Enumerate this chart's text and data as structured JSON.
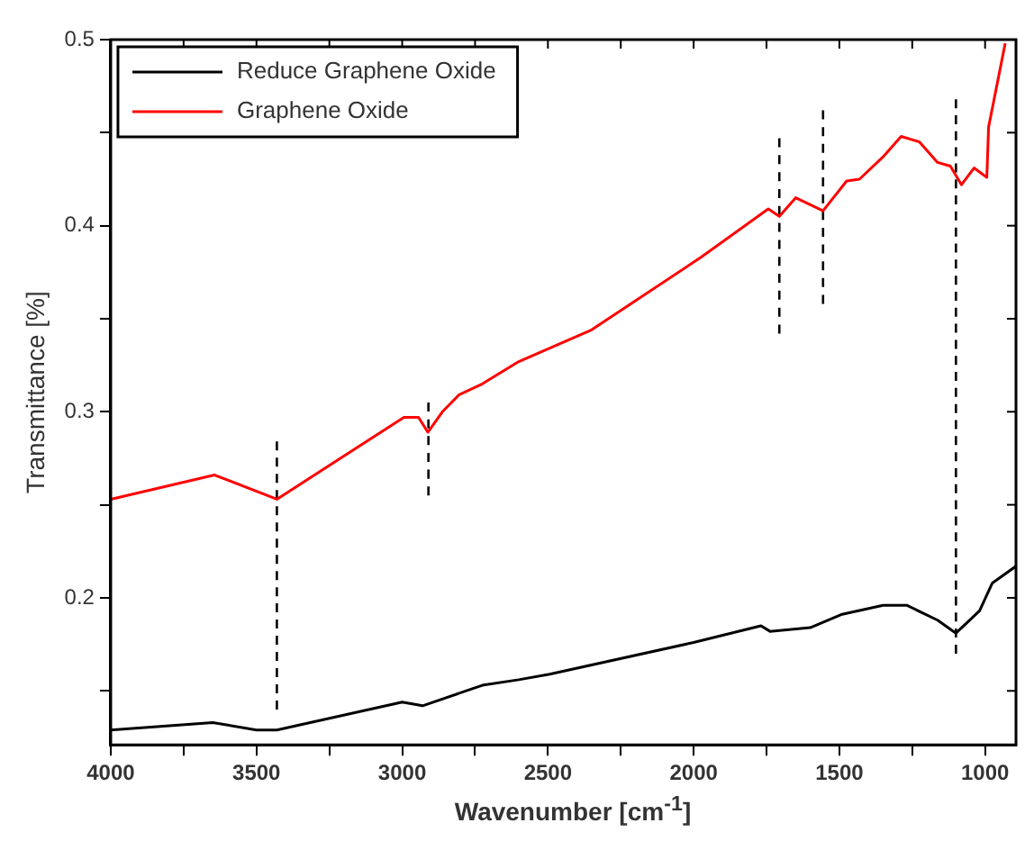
{
  "chart_data": {
    "type": "line",
    "xlabel": "Wavenumber [cm$^{-1}$]",
    "ylabel": "Transmittance [%]",
    "xlim": [
      4000,
      894
    ],
    "ylim": [
      0.121,
      0.5
    ],
    "xticks": [
      4000,
      {
        "value": 3750,
        "label": null
      },
      3500,
      {
        "value": 3250,
        "label": null
      },
      3000,
      {
        "value": 2750,
        "label": null
      },
      2500,
      {
        "value": 2250,
        "label": null
      },
      2000,
      {
        "value": 1750,
        "label": null
      },
      1500,
      {
        "value": 1250,
        "label": null
      },
      1000
    ],
    "yticks": [
      {
        "value": 0.15,
        "label": null
      },
      0.2,
      {
        "value": 0.25,
        "label": null
      },
      0.3,
      {
        "value": 0.35,
        "label": null
      },
      0.4,
      {
        "value": 0.45,
        "label": null
      },
      0.5
    ],
    "grid": false,
    "legend": "top left",
    "line_style": "solid",
    "series": [
      {
        "name": "Reduce Graphene Oxide",
        "color": "#000000",
        "x": [
          4000,
          3650,
          3500,
          3430,
          3000,
          2930,
          2725,
          2600,
          2494,
          2000,
          1769,
          1738,
          1600,
          1494,
          1350,
          1269,
          1163,
          1100,
          1019,
          975,
          894
        ],
        "values": [
          0.129,
          0.133,
          0.129,
          0.129,
          0.144,
          0.142,
          0.153,
          0.156,
          0.159,
          0.176,
          0.185,
          0.182,
          0.184,
          0.191,
          0.196,
          0.196,
          0.188,
          0.181,
          0.193,
          0.208,
          0.217
        ]
      },
      {
        "name": "Graphene Oxide",
        "color": "#ff0000",
        "x": [
          4000,
          3644,
          3430,
          2994,
          2944,
          2912,
          2862,
          2806,
          2725,
          2600,
          2350,
          1975,
          1744,
          1706,
          1650,
          1556,
          1475,
          1431,
          1350,
          1288,
          1225,
          1163,
          1119,
          1081,
          1038,
          994,
          988,
          931
        ],
        "values": [
          0.253,
          0.266,
          0.253,
          0.297,
          0.297,
          0.289,
          0.3,
          0.309,
          0.315,
          0.327,
          0.344,
          0.383,
          0.409,
          0.405,
          0.415,
          0.408,
          0.424,
          0.425,
          0.437,
          0.448,
          0.445,
          0.434,
          0.432,
          0.422,
          0.431,
          0.426,
          0.453,
          0.498
        ]
      },
      {
        "color": "#000000",
        "line_style": "dashed",
        "x": [
          3430,
          3430
        ],
        "values": [
          0.14,
          0.284
        ]
      },
      {
        "color": "#000000",
        "line_style": "dashed",
        "x": [
          2910,
          2910
        ],
        "values": [
          0.255,
          0.305
        ]
      },
      {
        "color": "#000000",
        "line_style": "dashed",
        "x": [
          1706,
          1706
        ],
        "values": [
          0.342,
          0.447
        ]
      },
      {
        "color": "#000000",
        "line_style": "dashed",
        "x": [
          1556,
          1556
        ],
        "values": [
          0.358,
          0.462
        ]
      },
      {
        "color": "#000000",
        "line_style": "dashed",
        "x": [
          1100,
          1100
        ],
        "values": [
          0.17,
          0.468
        ]
      }
    ]
  }
}
